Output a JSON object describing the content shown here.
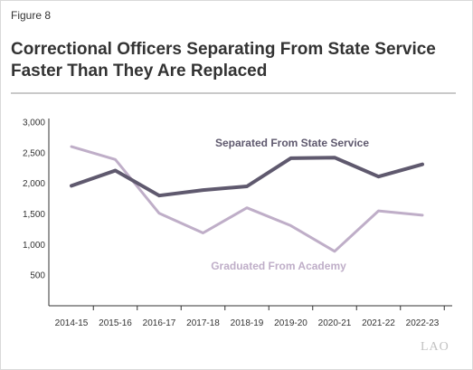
{
  "figure_label": "Figure 8",
  "title_line1": "Correctional Officers Separating From State Service",
  "title_line2": "Faster Than They Are Replaced",
  "logo_text": "LAO",
  "colors": {
    "separated": "#5f596e",
    "graduated": "#bfaec8",
    "axis": "#333333"
  },
  "chart_data": {
    "type": "line",
    "categories": [
      "2014-15",
      "2015-16",
      "2016-17",
      "2017-18",
      "2018-19",
      "2019-20",
      "2020-21",
      "2021-22",
      "2022-23"
    ],
    "ylim": [
      0,
      3000
    ],
    "yticks": [
      500,
      1000,
      1500,
      2000,
      2500,
      3000
    ],
    "ytick_labels": [
      "500",
      "1,000",
      "1,500",
      "2,000",
      "2,500",
      "3,000"
    ],
    "grid": false,
    "series": [
      {
        "name": "Separated From State Service",
        "values": [
          1960,
          2210,
          1800,
          1890,
          1950,
          2410,
          2420,
          2110,
          2310
        ]
      },
      {
        "name": "Graduated From Academy",
        "values": [
          2600,
          2390,
          1510,
          1190,
          1600,
          1310,
          890,
          1550,
          1480
        ]
      }
    ]
  }
}
